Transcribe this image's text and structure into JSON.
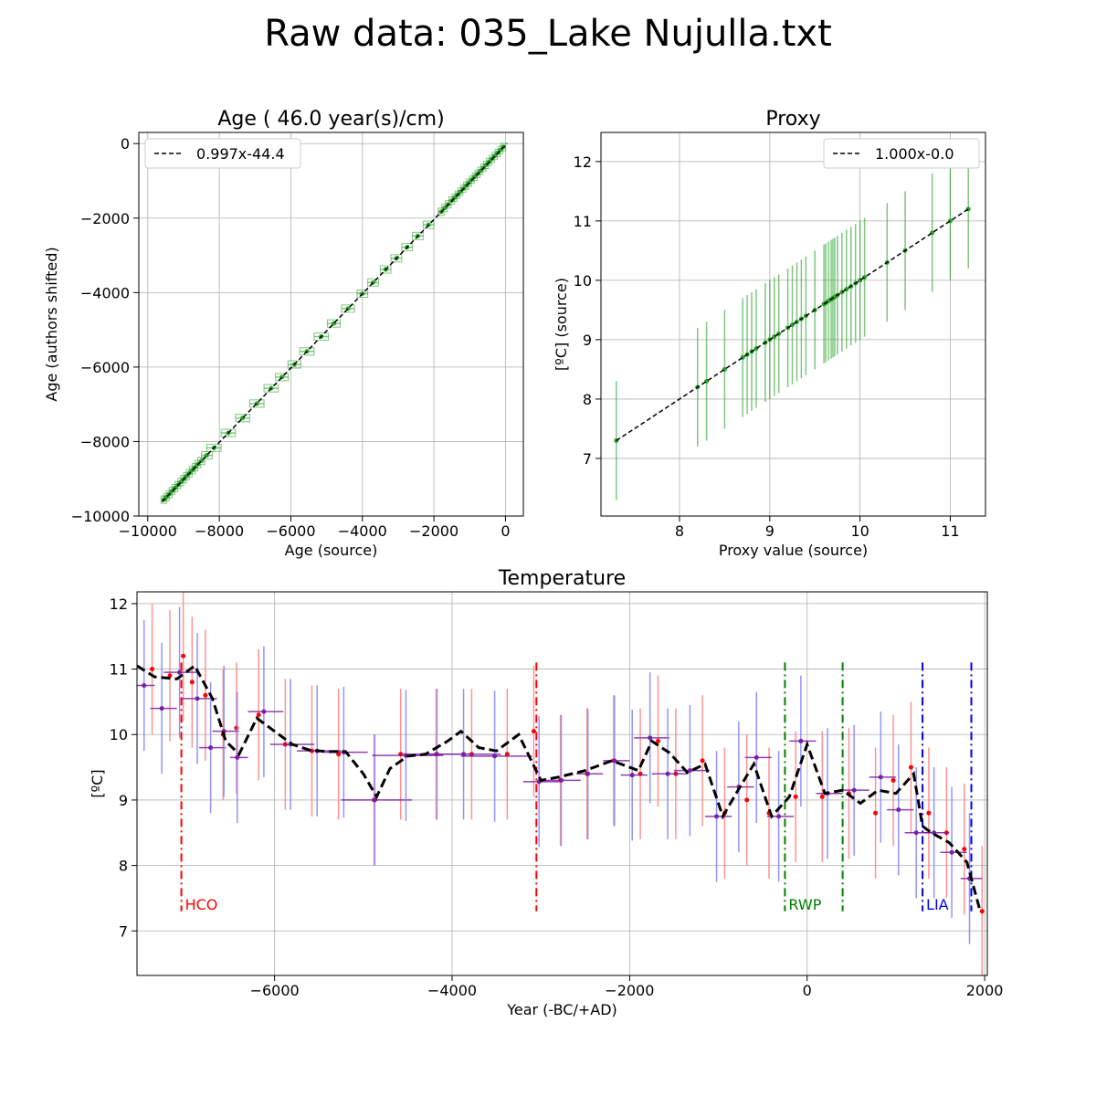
{
  "title": "Raw data: 035_Lake Nujulla.txt",
  "chart_data": [
    {
      "type": "scatter",
      "title": "Age ( 46.0 year(s)/cm)",
      "xlabel": "Age (source)",
      "ylabel": "Age (authors shifted)",
      "xlim": [
        -10250,
        500
      ],
      "ylim": [
        -10000,
        300
      ],
      "xticks": [
        -10000,
        -8000,
        -6000,
        -4000,
        -2000,
        0
      ],
      "yticks": [
        -10000,
        -8000,
        -6000,
        -4000,
        -2000,
        0
      ],
      "xtick_labels": [
        "−10000",
        "−8000",
        "−6000",
        "−4000",
        "−2000",
        "0"
      ],
      "ytick_labels": [
        "−10000",
        "−8000",
        "−6000",
        "−4000",
        "−2000",
        "0"
      ],
      "grid": true,
      "legend": {
        "placement": "upper-left",
        "entries": [
          "0.997x-44.4"
        ]
      },
      "fit": {
        "slope": 0.997,
        "intercept": -44.4,
        "x_range": [
          -9600,
          50
        ]
      },
      "series": [
        {
          "marker_color": "#2ca02c",
          "x": [
            -9550,
            -9480,
            -9400,
            -9320,
            -9240,
            -9160,
            -9080,
            -9000,
            -8920,
            -8840,
            -8760,
            -8680,
            -8600,
            -8500,
            -8350,
            -8150,
            -7750,
            -7350,
            -6950,
            -6550,
            -6250,
            -5900,
            -5550,
            -5150,
            -4800,
            -4400,
            -4000,
            -3700,
            -3350,
            -3050,
            -2750,
            -2450,
            -2150,
            -1800,
            -1700,
            -1600,
            -1500,
            -1420,
            -1340,
            -1260,
            -1180,
            -1100,
            -1020,
            -940,
            -860,
            -780,
            -700,
            -620,
            -540,
            -460,
            -380,
            -300,
            -220,
            -140,
            -60
          ],
          "y": [
            -9560,
            -9490,
            -9410,
            -9330,
            -9250,
            -9170,
            -9090,
            -9010,
            -8930,
            -8850,
            -8770,
            -8690,
            -8610,
            -8520,
            -8370,
            -8170,
            -7770,
            -7370,
            -6980,
            -6570,
            -6270,
            -5930,
            -5580,
            -5180,
            -4830,
            -4430,
            -4030,
            -3730,
            -3380,
            -3080,
            -2780,
            -2480,
            -2180,
            -1830,
            -1730,
            -1630,
            -1530,
            -1450,
            -1370,
            -1290,
            -1210,
            -1130,
            -1050,
            -970,
            -890,
            -810,
            -730,
            -650,
            -570,
            -490,
            -410,
            -330,
            -250,
            -170,
            -90
          ],
          "xerr": [
            80,
            80,
            80,
            80,
            80,
            80,
            80,
            80,
            80,
            80,
            80,
            80,
            80,
            100,
            150,
            200,
            200,
            200,
            200,
            200,
            180,
            180,
            200,
            200,
            180,
            180,
            150,
            150,
            150,
            150,
            150,
            150,
            150,
            80,
            80,
            80,
            80,
            70,
            70,
            70,
            70,
            70,
            70,
            70,
            70,
            70,
            70,
            70,
            70,
            70,
            70,
            70,
            70,
            70,
            70
          ]
        }
      ]
    },
    {
      "type": "scatter",
      "title": "Proxy",
      "xlabel": "Proxy value (source)",
      "ylabel": "[ºC] (source)",
      "xlim": [
        7.13,
        11.39
      ],
      "ylim": [
        6.03,
        12.49
      ],
      "xticks": [
        8,
        9,
        10,
        11
      ],
      "yticks": [
        7,
        8,
        9,
        10,
        11,
        12
      ],
      "xtick_labels": [
        "8",
        "9",
        "10",
        "11"
      ],
      "ytick_labels": [
        "7",
        "8",
        "9",
        "10",
        "11",
        "12"
      ],
      "grid": true,
      "legend": {
        "placement": "upper-right",
        "entries": [
          "1.000x-0.0"
        ]
      },
      "fit": {
        "slope": 1.0,
        "intercept": 0.0,
        "x_range": [
          7.3,
          11.2
        ]
      },
      "series": [
        {
          "marker_color": "#2ca02c",
          "x": [
            7.3,
            8.2,
            8.3,
            8.5,
            8.7,
            8.75,
            8.8,
            8.85,
            8.95,
            9.0,
            9.05,
            9.1,
            9.2,
            9.25,
            9.3,
            9.35,
            9.4,
            9.5,
            9.6,
            9.62,
            9.65,
            9.68,
            9.7,
            9.72,
            9.75,
            9.8,
            9.85,
            9.9,
            9.95,
            10.0,
            10.05,
            10.3,
            10.5,
            10.8,
            11.0,
            11.2
          ],
          "y": [
            7.3,
            8.2,
            8.3,
            8.5,
            8.7,
            8.75,
            8.8,
            8.85,
            8.95,
            9.0,
            9.05,
            9.1,
            9.2,
            9.25,
            9.3,
            9.35,
            9.4,
            9.5,
            9.6,
            9.62,
            9.65,
            9.68,
            9.7,
            9.72,
            9.75,
            9.8,
            9.85,
            9.9,
            9.95,
            10.0,
            10.05,
            10.3,
            10.5,
            10.8,
            11.0,
            11.2
          ],
          "yerr": [
            1.0,
            1.0,
            1.0,
            1.0,
            1.0,
            1.0,
            1.0,
            1.0,
            1.0,
            1.0,
            1.0,
            1.0,
            1.0,
            1.0,
            1.0,
            1.0,
            1.0,
            1.0,
            1.0,
            1.0,
            1.0,
            1.0,
            1.0,
            1.0,
            1.0,
            1.0,
            1.0,
            1.0,
            1.0,
            1.0,
            1.0,
            1.0,
            1.0,
            1.0,
            1.0,
            1.0
          ]
        }
      ]
    },
    {
      "type": "line",
      "title": "Temperature",
      "xlabel": "Year (-BC/+AD)",
      "ylabel": "[ºC]",
      "xlim": [
        -7550,
        2030
      ],
      "ylim": [
        6.32,
        12.18
      ],
      "xticks": [
        -6000,
        -4000,
        -2000,
        0,
        2000
      ],
      "yticks": [
        7,
        8,
        9,
        10,
        11,
        12
      ],
      "xtick_labels": [
        "−6000",
        "−4000",
        "−2000",
        "0",
        "2000"
      ],
      "ytick_labels": [
        "7",
        "8",
        "9",
        "10",
        "11",
        "12"
      ],
      "grid": true,
      "series": [
        {
          "style": "dashed",
          "color": "#000000",
          "x": [
            -7550,
            -7350,
            -7100,
            -6900,
            -6700,
            -6550,
            -6400,
            -6200,
            -6000,
            -5800,
            -5600,
            -5400,
            -5200,
            -5000,
            -4850,
            -4700,
            -4500,
            -4300,
            -4050,
            -3900,
            -3700,
            -3500,
            -3250,
            -3000,
            -2800,
            -2500,
            -2200,
            -1900,
            -1750,
            -1550,
            -1350,
            -1150,
            -950,
            -800,
            -600,
            -400,
            -200,
            0,
            200,
            400,
            600,
            800,
            1000,
            1200,
            1300,
            1400,
            1600,
            1800,
            1950
          ],
          "y": [
            11.05,
            10.88,
            10.85,
            11.05,
            10.55,
            9.9,
            9.7,
            10.25,
            10.05,
            9.85,
            9.76,
            9.74,
            9.74,
            9.4,
            9.05,
            9.48,
            9.67,
            9.7,
            9.9,
            10.05,
            9.8,
            9.75,
            10.0,
            9.3,
            9.35,
            9.45,
            9.6,
            9.45,
            9.9,
            9.72,
            9.42,
            9.55,
            8.75,
            9.1,
            9.55,
            8.75,
            9.05,
            9.85,
            9.1,
            9.15,
            8.95,
            9.15,
            9.1,
            9.4,
            8.6,
            8.5,
            8.35,
            8.05,
            7.3
          ]
        },
        {
          "style": "points",
          "color": "#ff0000",
          "errorbar_color": "#ff8080",
          "x": [
            -7400,
            -7200,
            -7050,
            -6950,
            -6800,
            -6600,
            -6450,
            -6200,
            -5900,
            -5600,
            -5300,
            -4900,
            -4600,
            -4200,
            -3800,
            -3400,
            -3100,
            -2800,
            -2500,
            -2200,
            -1900,
            -1700,
            -1500,
            -1200,
            -950,
            -700,
            -450,
            -150,
            150,
            450,
            750,
            950,
            1150,
            1350,
            1550,
            1750,
            1950
          ],
          "y": [
            11.0,
            10.9,
            11.2,
            10.8,
            10.6,
            10.0,
            10.1,
            10.3,
            9.85,
            9.75,
            9.7,
            9.0,
            9.7,
            9.7,
            9.7,
            9.7,
            10.05,
            9.3,
            9.4,
            9.6,
            9.4,
            9.9,
            9.4,
            9.6,
            8.8,
            9.0,
            8.8,
            9.05,
            9.05,
            9.1,
            8.8,
            9.3,
            9.5,
            8.8,
            8.5,
            8.25,
            7.3
          ],
          "yerr": [
            1.0,
            1.0,
            1.0,
            1.0,
            1.0,
            1.0,
            1.0,
            1.0,
            1.0,
            1.0,
            1.0,
            1.0,
            1.0,
            1.0,
            1.0,
            1.0,
            1.0,
            1.0,
            1.0,
            1.0,
            1.0,
            1.0,
            1.0,
            1.0,
            1.0,
            1.0,
            1.0,
            1.0,
            1.0,
            1.0,
            1.0,
            1.0,
            1.0,
            1.0,
            1.0,
            1.0,
            1.0
          ]
        },
        {
          "style": "points",
          "color": "#7b1fa2",
          "errorbar_color": "#8080ff",
          "x": [
            -7450,
            -7250,
            -7050,
            -6850,
            -6700,
            -6550,
            -6400,
            -6100,
            -5800,
            -5500,
            -5200,
            -4850,
            -4500,
            -4150,
            -3850,
            -3500,
            -3000,
            -2750,
            -2450,
            -2150,
            -1950,
            -1750,
            -1550,
            -1300,
            -1000,
            -750,
            -550,
            -300,
            -50,
            250,
            550,
            850,
            1050,
            1250,
            1450,
            1650,
            1850
          ],
          "y": [
            10.75,
            10.4,
            10.95,
            10.55,
            9.8,
            10.05,
            9.65,
            10.35,
            9.85,
            9.75,
            9.73,
            9.0,
            9.68,
            9.7,
            9.7,
            9.67,
            9.28,
            9.3,
            9.4,
            9.6,
            9.38,
            9.95,
            9.4,
            9.45,
            8.75,
            9.2,
            9.65,
            8.75,
            9.9,
            9.1,
            9.15,
            9.35,
            8.85,
            8.5,
            8.5,
            8.2,
            7.8
          ],
          "yerr": [
            1.0,
            1.0,
            1.0,
            1.0,
            1.0,
            1.0,
            1.0,
            1.0,
            1.0,
            1.0,
            1.0,
            1.0,
            1.0,
            1.0,
            1.0,
            1.0,
            1.0,
            1.0,
            1.0,
            1.0,
            1.0,
            1.0,
            1.0,
            1.0,
            1.0,
            1.0,
            1.0,
            1.0,
            1.0,
            1.0,
            1.0,
            1.0,
            1.0,
            1.0,
            1.0,
            1.0,
            1.0
          ],
          "xerr": [
            100,
            150,
            200,
            200,
            150,
            150,
            100,
            200,
            250,
            250,
            250,
            400,
            400,
            400,
            400,
            400,
            200,
            200,
            150,
            150,
            150,
            200,
            200,
            200,
            150,
            150,
            150,
            150,
            150,
            150,
            150,
            150,
            150,
            150,
            150,
            150,
            120
          ]
        }
      ],
      "periods": [
        {
          "label": "HCO",
          "start": -7050,
          "end": -3050,
          "color": "#ff0000"
        },
        {
          "label": "RWP",
          "start": -250,
          "end": 400,
          "color": "#008000"
        },
        {
          "label": "LIA",
          "start": 1300,
          "end": 1850,
          "color": "#0000ff"
        }
      ]
    }
  ]
}
